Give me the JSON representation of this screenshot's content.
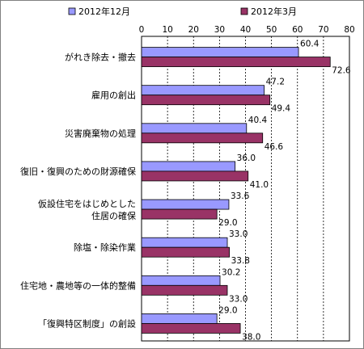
{
  "chart_data": {
    "type": "bar",
    "orientation": "horizontal",
    "title": "",
    "xlabel": "",
    "ylabel": "",
    "xlim": [
      0,
      80
    ],
    "xticks": [
      0,
      10,
      20,
      30,
      40,
      50,
      60,
      70,
      80
    ],
    "grid": true,
    "legend_position": "top",
    "categories": [
      [
        "がれき除去・撤去"
      ],
      [
        "雇用の創出"
      ],
      [
        "災害廃棄物の処理"
      ],
      [
        "復旧・復興のための財源確保"
      ],
      [
        "仮設住宅をはじめとした",
        "住居の確保"
      ],
      [
        "除塩・除染作業"
      ],
      [
        "住宅地・農地等の一体的整備"
      ],
      [
        "「復興特区制度」の創設"
      ]
    ],
    "series": [
      {
        "name": "2012年12月",
        "color": "#9999ff",
        "values": [
          60.4,
          47.2,
          40.4,
          36.0,
          33.6,
          33.0,
          30.2,
          29.0
        ],
        "labels": [
          "60.4",
          "47.2",
          "40.4",
          "36.0",
          "33.6",
          "33.0",
          "30.2",
          "29.0"
        ]
      },
      {
        "name": "2012年3月",
        "color": "#993366",
        "values": [
          72.6,
          49.4,
          46.6,
          41.0,
          29.0,
          33.8,
          33.0,
          38.0
        ],
        "labels": [
          "72.6",
          "49.4",
          "46.6",
          "41.0",
          "29.0",
          "33.8",
          "33.0",
          "38.0"
        ]
      }
    ]
  }
}
